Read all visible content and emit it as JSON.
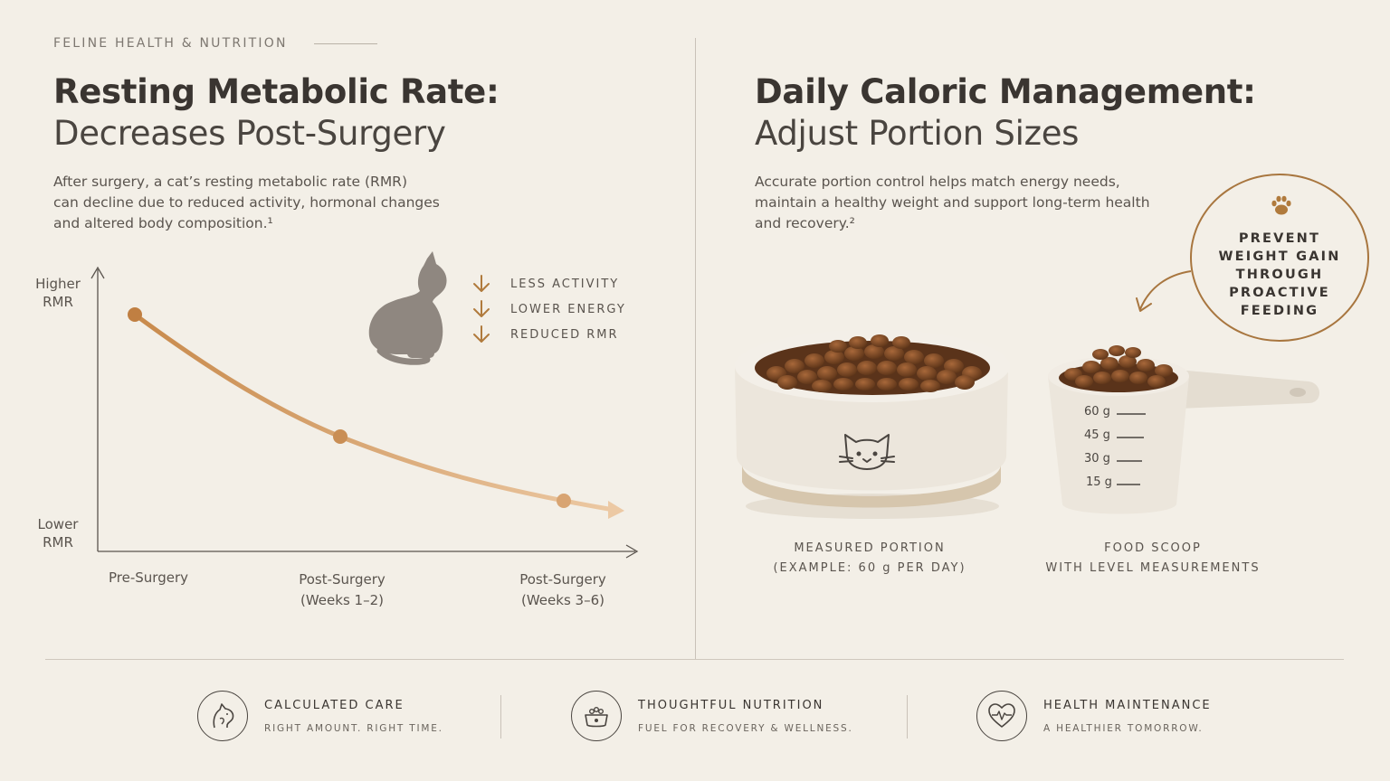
{
  "header": {
    "eyebrow": "FELINE HEALTH & NUTRITION"
  },
  "left": {
    "title_bold": "Resting Metabolic Rate:",
    "title_light": "Decreases Post-Surgery",
    "paragraph_lines": [
      "After surgery, a cat’s resting metabolic rate (RMR)",
      "can decline due to reduced activity, hormonal changes",
      "and altered body composition.¹"
    ],
    "chart": {
      "y_top_label_1": "Higher",
      "y_top_label_2": "RMR",
      "y_bottom_label_1": "Lower",
      "y_bottom_label_2": "RMR",
      "x_labels": [
        {
          "line1": "Pre-Surgery",
          "line2": ""
        },
        {
          "line1": "Post-Surgery",
          "line2": "(Weeks 1–2)"
        },
        {
          "line1": "Post-Surgery",
          "line2": "(Weeks 3–6)"
        }
      ]
    },
    "effects": [
      {
        "icon": "arrow-down-icon",
        "label": "LESS ACTIVITY"
      },
      {
        "icon": "arrow-down-icon",
        "label": "LOWER ENERGY"
      },
      {
        "icon": "arrow-down-icon",
        "label": "REDUCED RMR"
      }
    ]
  },
  "right": {
    "title_bold": "Daily Caloric Management:",
    "title_light": "Adjust Portion Sizes",
    "paragraph_lines": [
      "Accurate portion control helps match energy needs,",
      "maintain a healthy weight and support long-term health",
      "and recovery.²"
    ],
    "badge_lines": [
      "PREVENT",
      "WEIGHT GAIN",
      "THROUGH",
      "PROACTIVE",
      "FEEDING"
    ],
    "bowl_caption_1": "MEASURED PORTION",
    "bowl_caption_2": "(EXAMPLE: 60 g PER DAY)",
    "scoop_caption_1": "FOOD SCOOP",
    "scoop_caption_2": "WITH LEVEL MEASUREMENTS",
    "scoop_marks": [
      "60 g",
      "45 g",
      "30 g",
      "15 g"
    ]
  },
  "features": [
    {
      "icon": "cat-head-icon",
      "title": "CALCULATED CARE",
      "subtitle": "RIGHT AMOUNT. RIGHT TIME."
    },
    {
      "icon": "food-bowl-icon",
      "title": "THOUGHTFUL NUTRITION",
      "subtitle": "FUEL FOR RECOVERY & WELLNESS."
    },
    {
      "icon": "heart-pulse-icon",
      "title": "HEALTH MAINTENANCE",
      "subtitle": "A HEALTHIER TOMORROW."
    }
  ],
  "colors": {
    "background": "#f3efe7",
    "accent": "#b07a3c",
    "text": "#3a3531"
  }
}
